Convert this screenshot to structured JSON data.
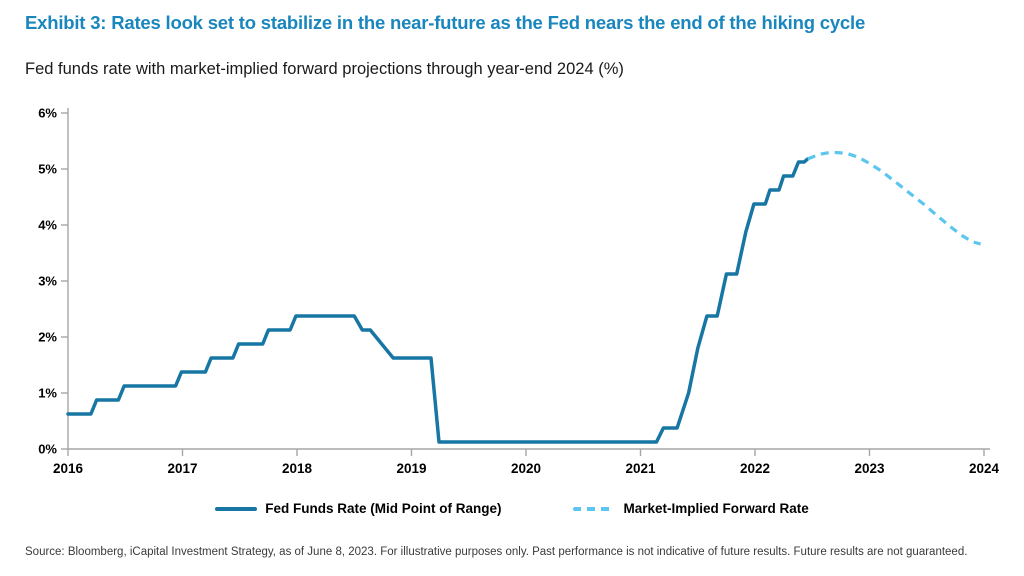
{
  "header": {
    "title": "Exhibit 3: Rates look set to stabilize in the near-future as the Fed nears the end of the hiking cycle",
    "subtitle": "Fed funds rate with market-implied forward projections through year-end 2024 (%)"
  },
  "colors": {
    "title_text": "#1A86BE",
    "fed_funds_line": "#1776A3",
    "forward_line": "#5BC6EE",
    "axis": "#A6A6A6",
    "tick_text": "#000000",
    "source_text": "#3A3A3A"
  },
  "chart_data": {
    "type": "line",
    "title": "Fed funds rate with market-implied forward projections through year-end 2024 (%)",
    "xlabel": "",
    "ylabel": "",
    "xlim": [
      2016,
      2024
    ],
    "ylim": [
      0,
      6
    ],
    "grid": false,
    "legend_position": "bottom",
    "x_ticks": [
      "2016",
      "2017",
      "2018",
      "2019",
      "2020",
      "2021",
      "2022",
      "2023",
      "2024"
    ],
    "y_ticks": [
      "0%",
      "1%",
      "2%",
      "3%",
      "4%",
      "5%",
      "6%"
    ],
    "series": [
      {
        "name": "Fed Funds Rate (Mid Point of Range)",
        "style": "solid",
        "color": "#1776A3",
        "points": [
          [
            2016.0,
            0.625
          ],
          [
            2016.2,
            0.625
          ],
          [
            2016.25,
            0.875
          ],
          [
            2016.44,
            0.875
          ],
          [
            2016.49,
            1.125
          ],
          [
            2016.94,
            1.125
          ],
          [
            2016.99,
            1.375
          ],
          [
            2017.2,
            1.375
          ],
          [
            2017.25,
            1.625
          ],
          [
            2017.44,
            1.625
          ],
          [
            2017.49,
            1.875
          ],
          [
            2017.7,
            1.875
          ],
          [
            2017.75,
            2.125
          ],
          [
            2017.94,
            2.125
          ],
          [
            2017.99,
            2.375
          ],
          [
            2018.5,
            2.375
          ],
          [
            2018.57,
            2.125
          ],
          [
            2018.64,
            2.125
          ],
          [
            2018.84,
            1.625
          ],
          [
            2019.17,
            1.625
          ],
          [
            2019.24,
            0.125
          ],
          [
            2021.14,
            0.125
          ],
          [
            2021.2,
            0.375
          ],
          [
            2021.32,
            0.375
          ],
          [
            2021.42,
            1.0
          ],
          [
            2021.5,
            1.8
          ],
          [
            2021.58,
            2.375
          ],
          [
            2021.67,
            2.375
          ],
          [
            2021.75,
            3.125
          ],
          [
            2021.84,
            3.125
          ],
          [
            2021.92,
            3.875
          ],
          [
            2021.99,
            4.375
          ],
          [
            2022.09,
            4.375
          ],
          [
            2022.13,
            4.625
          ],
          [
            2022.21,
            4.625
          ],
          [
            2022.25,
            4.875
          ],
          [
            2022.33,
            4.875
          ],
          [
            2022.38,
            5.125
          ],
          [
            2022.43,
            5.125
          ],
          [
            2022.46,
            5.18
          ]
        ]
      },
      {
        "name": "Market-Implied Forward Rate",
        "style": "dashed",
        "color": "#5BC6EE",
        "points": [
          [
            2022.46,
            5.18
          ],
          [
            2022.56,
            5.26
          ],
          [
            2022.67,
            5.3
          ],
          [
            2022.8,
            5.28
          ],
          [
            2022.9,
            5.21
          ],
          [
            2023.0,
            5.1
          ],
          [
            2023.1,
            4.97
          ],
          [
            2023.22,
            4.78
          ],
          [
            2023.35,
            4.57
          ],
          [
            2023.48,
            4.36
          ],
          [
            2023.6,
            4.15
          ],
          [
            2023.7,
            3.98
          ],
          [
            2023.8,
            3.82
          ],
          [
            2023.9,
            3.7
          ],
          [
            2023.97,
            3.66
          ]
        ]
      }
    ]
  },
  "footer": {
    "source": "Source: Bloomberg, iCapital Investment Strategy, as of June 8, 2023. For illustrative purposes only. Past performance is not indicative of future results. Future results are not guaranteed."
  }
}
